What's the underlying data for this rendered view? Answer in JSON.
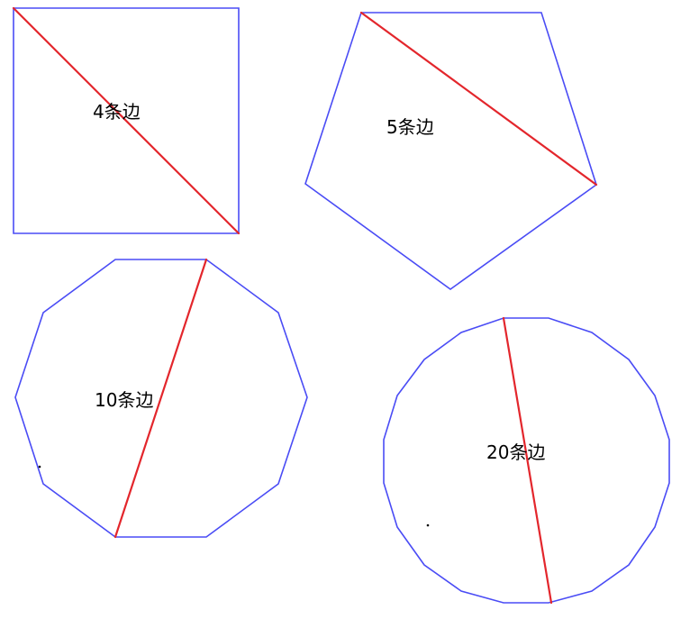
{
  "colors": {
    "polygon_stroke": "#4a4cf5",
    "diagonal_stroke": "#e3262c",
    "label_text": "#000000",
    "background": "#ffffff"
  },
  "figures": [
    {
      "sides": 4,
      "label": "4条边"
    },
    {
      "sides": 5,
      "label": "5条边"
    },
    {
      "sides": 10,
      "label": "10条边"
    },
    {
      "sides": 20,
      "label": "20条边"
    }
  ]
}
